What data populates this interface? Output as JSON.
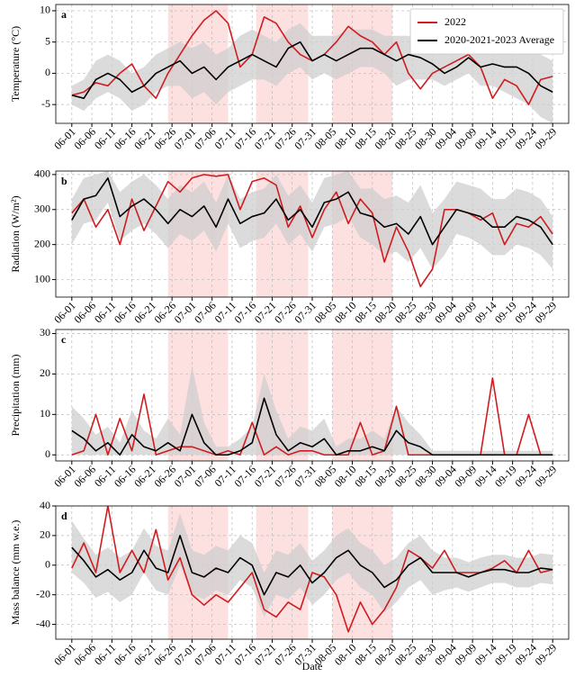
{
  "chart_data": [
    {
      "type": "line",
      "label": "a",
      "ylabel": "Temperature (°C)",
      "legend": "upper right",
      "x": [
        "06-01",
        "06-04",
        "06-07",
        "06-10",
        "06-13",
        "06-16",
        "06-19",
        "06-22",
        "06-25",
        "06-28",
        "07-01",
        "07-04",
        "07-07",
        "07-10",
        "07-13",
        "07-16",
        "07-19",
        "07-22",
        "07-25",
        "07-28",
        "07-31",
        "08-03",
        "08-06",
        "08-09",
        "08-12",
        "08-15",
        "08-18",
        "08-21",
        "08-24",
        "08-27",
        "08-30",
        "09-02",
        "09-05",
        "09-08",
        "09-11",
        "09-14",
        "09-17",
        "09-20",
        "09-23",
        "09-26",
        "09-29"
      ],
      "xlim": [
        "05-28",
        "10-03"
      ],
      "xticks": [
        "06-01",
        "06-06",
        "06-11",
        "06-16",
        "06-21",
        "06-26",
        "07-01",
        "07-06",
        "07-11",
        "07-16",
        "07-21",
        "07-26",
        "07-31",
        "08-05",
        "08-10",
        "08-15",
        "08-20",
        "08-25",
        "08-30",
        "09-04",
        "09-09",
        "09-14",
        "09-19",
        "09-24",
        "09-29"
      ],
      "ylim": [
        -8,
        11
      ],
      "yticks": [
        -5,
        0,
        5,
        10
      ],
      "grid": true,
      "shaded_periods": [
        [
          "06-25",
          "07-10"
        ],
        [
          "07-17",
          "07-30"
        ],
        [
          "08-05",
          "08-20"
        ]
      ],
      "shade_color": "#fde0e0",
      "series": [
        {
          "name": "2022",
          "color": "#d01c1f",
          "values": [
            -3.5,
            -3,
            -1.5,
            -2,
            0,
            1.5,
            -2,
            -4,
            0,
            3,
            6,
            8.5,
            10,
            8,
            1,
            3,
            9,
            8,
            5,
            3,
            2,
            3,
            5,
            7.5,
            6,
            5,
            3,
            5,
            0,
            -2.5,
            0,
            1,
            2,
            3,
            1,
            -4,
            -1,
            -2,
            -5,
            -1,
            -0.5
          ]
        },
        {
          "name": "2020-2021-2023 Average",
          "color": "#000000",
          "band_color": "#cfcfcf",
          "values": [
            -3.5,
            -4,
            -1,
            0,
            -1,
            -3,
            -2,
            0,
            1,
            2,
            0,
            1,
            -1,
            1,
            2,
            3,
            2,
            1,
            4,
            5,
            2,
            3,
            2,
            3,
            4,
            4,
            3,
            2,
            3,
            2.5,
            1.5,
            0,
            1,
            2.5,
            1,
            1.5,
            1,
            1,
            0,
            -2,
            -3
          ],
          "band_lower": [
            -5,
            -6,
            -4,
            -3,
            -4,
            -6,
            -5,
            -3,
            -2,
            -2,
            -4,
            -3,
            -5,
            -3,
            -2,
            -1,
            -1,
            -2,
            0,
            1,
            -1,
            0,
            -1,
            0,
            1,
            1,
            0,
            -2,
            -1,
            -1,
            -1,
            -2,
            -1,
            0,
            -2,
            -2,
            -3,
            -4,
            -5,
            -7,
            -8
          ],
          "band_upper": [
            -2,
            -1,
            2,
            3,
            2,
            0,
            1,
            3,
            4,
            5,
            4,
            5,
            3,
            4,
            6,
            7,
            6,
            5,
            7,
            8,
            6,
            6,
            6,
            7,
            7,
            7,
            6,
            6,
            6,
            5,
            4,
            3,
            4,
            5,
            4,
            5,
            4,
            4,
            4,
            3,
            2
          ]
        }
      ]
    },
    {
      "type": "line",
      "label": "b",
      "ylabel": "Radiation (W/m²)",
      "x": [
        "06-01",
        "06-04",
        "06-07",
        "06-10",
        "06-13",
        "06-16",
        "06-19",
        "06-22",
        "06-25",
        "06-28",
        "07-01",
        "07-04",
        "07-07",
        "07-10",
        "07-13",
        "07-16",
        "07-19",
        "07-22",
        "07-25",
        "07-28",
        "07-31",
        "08-03",
        "08-06",
        "08-09",
        "08-12",
        "08-15",
        "08-18",
        "08-21",
        "08-24",
        "08-27",
        "08-30",
        "09-02",
        "09-05",
        "09-08",
        "09-11",
        "09-14",
        "09-17",
        "09-20",
        "09-23",
        "09-26",
        "09-29"
      ],
      "xlim": [
        "05-28",
        "10-03"
      ],
      "xticks": [
        "06-01",
        "06-06",
        "06-11",
        "06-16",
        "06-21",
        "06-26",
        "07-01",
        "07-06",
        "07-11",
        "07-16",
        "07-21",
        "07-26",
        "07-31",
        "08-05",
        "08-10",
        "08-15",
        "08-20",
        "08-25",
        "08-30",
        "09-04",
        "09-09",
        "09-14",
        "09-19",
        "09-24",
        "09-29"
      ],
      "ylim": [
        50,
        410
      ],
      "yticks": [
        100,
        200,
        300,
        400
      ],
      "grid": true,
      "shaded_periods": [
        [
          "06-25",
          "07-10"
        ],
        [
          "07-17",
          "07-30"
        ],
        [
          "08-05",
          "08-20"
        ]
      ],
      "shade_color": "#fde0e0",
      "series": [
        {
          "color": "#d01c1f",
          "values": [
            290,
            330,
            250,
            300,
            200,
            330,
            240,
            310,
            380,
            350,
            390,
            400,
            395,
            400,
            300,
            380,
            390,
            370,
            250,
            310,
            220,
            300,
            350,
            260,
            330,
            290,
            150,
            250,
            180,
            80,
            130,
            300,
            300,
            290,
            270,
            290,
            200,
            260,
            250,
            280,
            230
          ]
        },
        {
          "color": "#000000",
          "band_color": "#cfcfcf",
          "values": [
            270,
            330,
            340,
            390,
            280,
            310,
            330,
            300,
            260,
            300,
            280,
            310,
            250,
            330,
            260,
            280,
            290,
            330,
            270,
            300,
            250,
            320,
            330,
            350,
            290,
            280,
            250,
            260,
            230,
            280,
            200,
            250,
            300,
            290,
            280,
            250,
            250,
            280,
            270,
            250,
            200
          ],
          "band_lower": [
            200,
            260,
            270,
            320,
            210,
            240,
            260,
            230,
            190,
            230,
            210,
            240,
            180,
            260,
            190,
            210,
            220,
            260,
            200,
            230,
            180,
            250,
            260,
            280,
            220,
            200,
            170,
            180,
            150,
            190,
            130,
            170,
            230,
            220,
            200,
            170,
            170,
            200,
            190,
            170,
            130
          ],
          "band_upper": [
            330,
            390,
            400,
            410,
            350,
            380,
            400,
            370,
            330,
            370,
            350,
            380,
            320,
            400,
            330,
            350,
            360,
            400,
            340,
            370,
            320,
            390,
            400,
            410,
            360,
            360,
            330,
            340,
            320,
            370,
            290,
            330,
            380,
            370,
            360,
            330,
            330,
            360,
            350,
            330,
            280
          ]
        }
      ]
    },
    {
      "type": "line",
      "label": "c",
      "ylabel": "Precipitation (mm)",
      "x": [
        "06-01",
        "06-04",
        "06-07",
        "06-10",
        "06-13",
        "06-16",
        "06-19",
        "06-22",
        "06-25",
        "06-28",
        "07-01",
        "07-04",
        "07-07",
        "07-10",
        "07-13",
        "07-16",
        "07-19",
        "07-22",
        "07-25",
        "07-28",
        "07-31",
        "08-03",
        "08-06",
        "08-09",
        "08-12",
        "08-15",
        "08-18",
        "08-21",
        "08-24",
        "08-27",
        "08-30",
        "09-02",
        "09-05",
        "09-08",
        "09-11",
        "09-14",
        "09-17",
        "09-20",
        "09-23",
        "09-26",
        "09-29"
      ],
      "xlim": [
        "05-28",
        "10-03"
      ],
      "xticks": [
        "06-01",
        "06-06",
        "06-11",
        "06-16",
        "06-21",
        "06-26",
        "07-01",
        "07-06",
        "07-11",
        "07-16",
        "07-21",
        "07-26",
        "07-31",
        "08-05",
        "08-10",
        "08-15",
        "08-20",
        "08-25",
        "08-30",
        "09-04",
        "09-09",
        "09-14",
        "09-19",
        "09-24",
        "09-29"
      ],
      "ylim": [
        -1.5,
        31
      ],
      "yticks": [
        0,
        10,
        20,
        30
      ],
      "grid": true,
      "shaded_periods": [
        [
          "06-25",
          "07-10"
        ],
        [
          "07-17",
          "07-30"
        ],
        [
          "08-05",
          "08-20"
        ]
      ],
      "shade_color": "#fde0e0",
      "series": [
        {
          "color": "#d01c1f",
          "values": [
            0,
            1,
            10,
            0,
            9,
            1,
            15,
            0,
            1,
            2,
            2,
            1,
            0,
            1,
            0,
            8,
            0,
            2,
            0,
            1,
            1,
            0,
            0,
            0,
            8,
            0,
            1,
            12,
            0,
            0,
            0,
            0,
            0,
            0,
            0,
            19,
            0,
            0,
            10,
            0,
            0
          ]
        },
        {
          "color": "#000000",
          "band_color": "#cfcfcf",
          "values": [
            6,
            4,
            1,
            3,
            0,
            5,
            2,
            1,
            3,
            1,
            10,
            3,
            0,
            0,
            1,
            3,
            14,
            5,
            1,
            3,
            2,
            4,
            0,
            1,
            1,
            2,
            1,
            6,
            3,
            2,
            0,
            0,
            0,
            0,
            0,
            0,
            0,
            0,
            0,
            0,
            0
          ],
          "band_lower": [
            0,
            0,
            0,
            0,
            0,
            0,
            0,
            0,
            0,
            0,
            0,
            0,
            0,
            0,
            0,
            0,
            0,
            0,
            0,
            0,
            0,
            0,
            0,
            0,
            0,
            0,
            0,
            0,
            0,
            0,
            0,
            0,
            0,
            0,
            0,
            0,
            0,
            0,
            0,
            0,
            0
          ],
          "band_upper": [
            12,
            9,
            5,
            7,
            3,
            11,
            6,
            4,
            9,
            5,
            22,
            8,
            2,
            2,
            4,
            7,
            20,
            11,
            4,
            7,
            6,
            9,
            2,
            4,
            4,
            6,
            4,
            12,
            8,
            5,
            1,
            1,
            1,
            1,
            1,
            1,
            1,
            1,
            1,
            1,
            1
          ]
        }
      ]
    },
    {
      "type": "line",
      "label": "d",
      "ylabel": "Mass balance (mm w.e.)",
      "xlabel": "Date",
      "x": [
        "06-01",
        "06-04",
        "06-07",
        "06-10",
        "06-13",
        "06-16",
        "06-19",
        "06-22",
        "06-25",
        "06-28",
        "07-01",
        "07-04",
        "07-07",
        "07-10",
        "07-13",
        "07-16",
        "07-19",
        "07-22",
        "07-25",
        "07-28",
        "07-31",
        "08-03",
        "08-06",
        "08-09",
        "08-12",
        "08-15",
        "08-18",
        "08-21",
        "08-24",
        "08-27",
        "08-30",
        "09-02",
        "09-05",
        "09-08",
        "09-11",
        "09-14",
        "09-17",
        "09-20",
        "09-23",
        "09-26",
        "09-29"
      ],
      "xlim": [
        "05-28",
        "10-03"
      ],
      "xticks": [
        "06-01",
        "06-06",
        "06-11",
        "06-16",
        "06-21",
        "06-26",
        "07-01",
        "07-06",
        "07-11",
        "07-16",
        "07-21",
        "07-26",
        "07-31",
        "08-05",
        "08-10",
        "08-15",
        "08-20",
        "08-25",
        "08-30",
        "09-04",
        "09-09",
        "09-14",
        "09-19",
        "09-24",
        "09-29"
      ],
      "ylim": [
        -50,
        40
      ],
      "yticks": [
        -40,
        -20,
        0,
        20,
        40
      ],
      "grid": true,
      "shaded_periods": [
        [
          "06-25",
          "07-10"
        ],
        [
          "07-17",
          "07-30"
        ],
        [
          "08-05",
          "08-20"
        ]
      ],
      "shade_color": "#fde0e0",
      "series": [
        {
          "color": "#d01c1f",
          "values": [
            -2,
            15,
            -5,
            40,
            -5,
            10,
            -5,
            24,
            -10,
            5,
            -20,
            -27,
            -20,
            -25,
            -15,
            -5,
            -30,
            -35,
            -25,
            -30,
            -5,
            -8,
            -20,
            -45,
            -25,
            -40,
            -30,
            -15,
            10,
            5,
            -2,
            10,
            -5,
            -5,
            -5,
            -2,
            3,
            -5,
            10,
            -5,
            -3
          ]
        },
        {
          "color": "#000000",
          "band_color": "#cfcfcf",
          "values": [
            12,
            3,
            -8,
            -3,
            -10,
            -5,
            10,
            -2,
            -5,
            20,
            -5,
            -8,
            -2,
            -5,
            5,
            0,
            -20,
            -5,
            -8,
            0,
            -12,
            -5,
            5,
            10,
            0,
            -5,
            -15,
            -10,
            0,
            5,
            -5,
            -5,
            -5,
            -8,
            -5,
            -3,
            -3,
            -5,
            -5,
            -2,
            -3
          ],
          "band_lower": [
            -5,
            -12,
            -22,
            -18,
            -25,
            -20,
            -5,
            -17,
            -20,
            0,
            -20,
            -23,
            -17,
            -20,
            -10,
            -15,
            -35,
            -20,
            -23,
            -15,
            -27,
            -20,
            -10,
            -5,
            -15,
            -20,
            -32,
            -25,
            -15,
            -10,
            -20,
            -17,
            -15,
            -18,
            -15,
            -12,
            -12,
            -15,
            -15,
            -12,
            -13
          ],
          "band_upper": [
            30,
            18,
            7,
            12,
            5,
            10,
            25,
            13,
            10,
            35,
            10,
            7,
            13,
            10,
            20,
            15,
            -5,
            10,
            7,
            15,
            3,
            10,
            20,
            25,
            15,
            10,
            0,
            5,
            15,
            20,
            10,
            5,
            5,
            2,
            5,
            7,
            7,
            5,
            5,
            8,
            7
          ]
        }
      ]
    }
  ]
}
